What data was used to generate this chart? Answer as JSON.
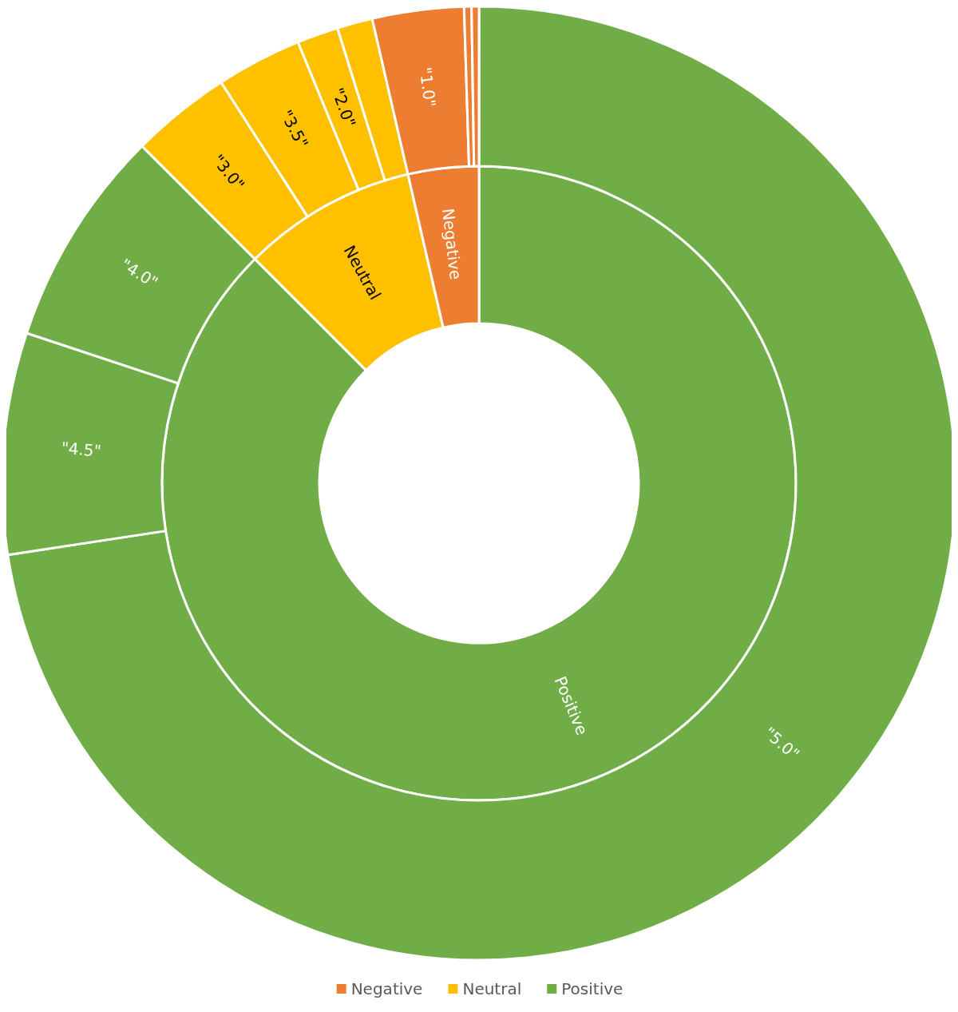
{
  "chart_data": [
    {
      "type": "donut",
      "legend": "bottom",
      "categories": [
        "Positive",
        "Neutral",
        "Negative"
      ],
      "values": [
        87.5,
        8.9,
        3.6
      ],
      "colors": [
        "#70ad47",
        "#ffc000",
        "#ed7d31"
      ]
    },
    {
      "type": "donut",
      "categories": [
        "\"5.0\"",
        "\"4.5\"",
        "\"4.0\"",
        "\"3.0\"",
        "\"3.5\"",
        "\"2.0\"",
        null,
        "\"1.0\"",
        null,
        null
      ],
      "values": [
        72.6,
        7.5,
        7.4,
        3.4,
        2.9,
        1.4,
        1.2,
        3.1,
        0.25,
        0.25
      ],
      "colors": [
        "#70ad47",
        "#70ad47",
        "#70ad47",
        "#ffc000",
        "#ffc000",
        "#ffc000",
        "#ffc000",
        "#ed7d31",
        "#ed7d31",
        "#ed7d31"
      ]
    }
  ]
}
